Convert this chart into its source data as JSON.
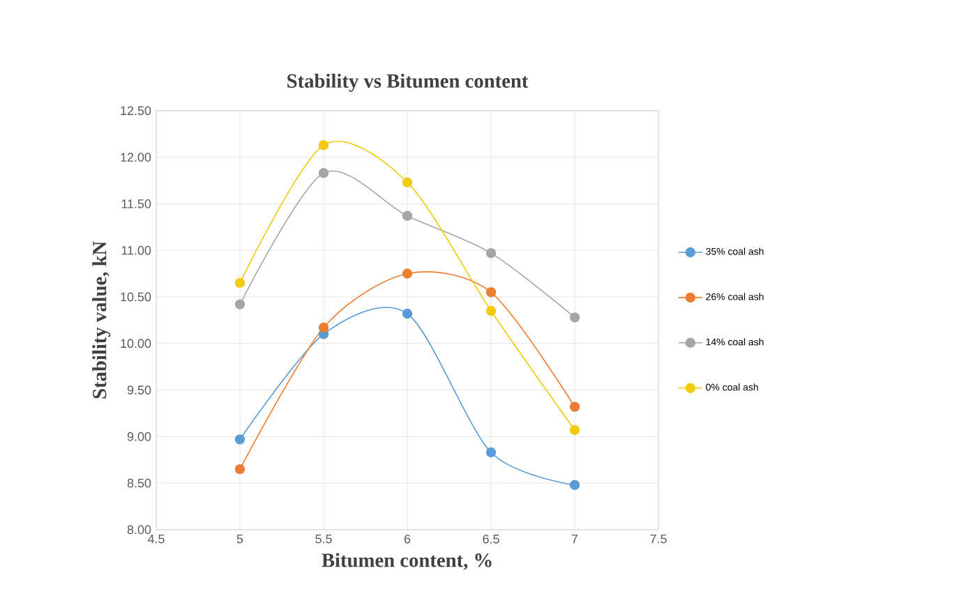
{
  "chart_data": {
    "type": "line",
    "title": "Stability vs Bitumen content",
    "xlabel": "Bitumen content, %",
    "ylabel": "Stability value, kN",
    "x": [
      5,
      5.5,
      6,
      6.5,
      7
    ],
    "series": [
      {
        "name": "35% coal ash",
        "color": "#5b9bd5",
        "values": [
          8.97,
          10.1,
          10.32,
          8.83,
          8.48
        ]
      },
      {
        "name": "26% coal ash",
        "color": "#ed7d31",
        "values": [
          8.65,
          10.17,
          10.75,
          10.55,
          9.32
        ]
      },
      {
        "name": "14% coal ash",
        "color": "#a5a5a5",
        "values": [
          10.42,
          11.83,
          11.37,
          10.97,
          10.28
        ]
      },
      {
        "name": "0% coal ash",
        "color": "#f2cc0c",
        "values": [
          10.65,
          12.13,
          11.73,
          10.35,
          9.07
        ]
      }
    ],
    "xlim": [
      4.5,
      7.5
    ],
    "xticks": [
      4.5,
      5,
      5.5,
      6,
      6.5,
      7,
      7.5
    ],
    "ylim": [
      8.0,
      12.5
    ],
    "yticks": [
      {
        "value": 8.0,
        "label": "8.00"
      },
      {
        "value": 8.5,
        "label": "8.50"
      },
      {
        "value": 9.0,
        "label": "9.00"
      },
      {
        "value": 9.5,
        "label": "9.50"
      },
      {
        "value": 10.0,
        "label": "10.00"
      },
      {
        "value": 10.5,
        "label": "10.50"
      },
      {
        "value": 11.0,
        "label": "11.00"
      },
      {
        "value": 11.5,
        "label": "11.50"
      },
      {
        "value": 12.0,
        "label": "12.00"
      },
      {
        "value": 12.5,
        "label": "12.50"
      }
    ],
    "grid": true,
    "legend": "right",
    "marker": "circle",
    "line_style": "solid"
  }
}
